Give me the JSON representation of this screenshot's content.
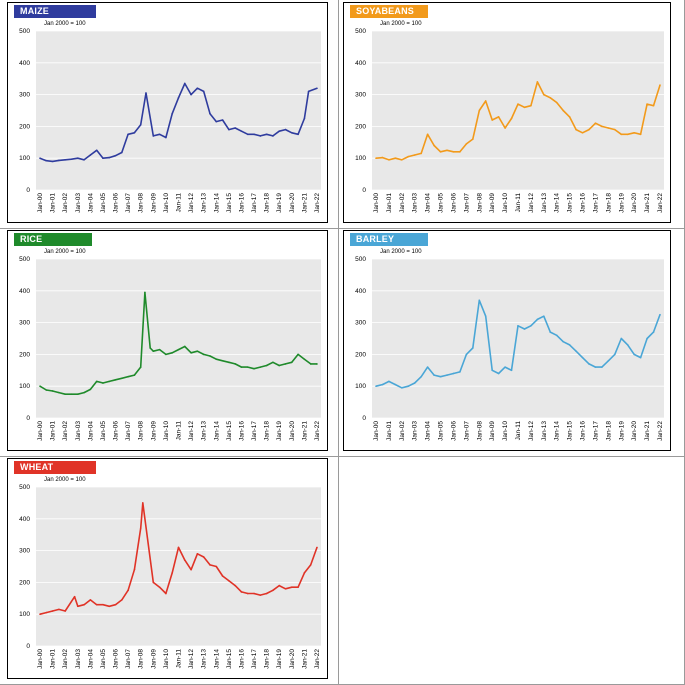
{
  "chart_data": [
    {
      "type": "line",
      "title": "MAIZE",
      "subtitle": "Jan 2000 = 100",
      "color": "#2f3c9e",
      "ylim": [
        0,
        500
      ],
      "yticks": [
        0,
        100,
        200,
        300,
        400,
        500
      ],
      "grid": true,
      "legend": "none",
      "x_range": [
        "Jan-00",
        "Jan-22"
      ],
      "xticks": [
        "Jan-00",
        "Jan-01",
        "Jan-02",
        "Jan-03",
        "Jan-04",
        "Jan-05",
        "Jan-06",
        "Jan-07",
        "Jan-08",
        "Jan-09",
        "Jan-10",
        "Jan-11",
        "Jan-12",
        "Jan-13",
        "Jan-14",
        "Jan-15",
        "Jan-16",
        "Jan-17",
        "Jan-18",
        "Jan-19",
        "Jan-20",
        "Jan-21",
        "Jan-22"
      ],
      "x": [
        "Jan-00",
        "Jul-00",
        "Jan-01",
        "Jul-01",
        "Jan-02",
        "Jul-02",
        "Jan-03",
        "Jul-03",
        "Jan-04",
        "Jul-04",
        "Jan-05",
        "Jul-05",
        "Jan-06",
        "Jul-06",
        "Jan-07",
        "Jul-07",
        "Jan-08",
        "Jun-08",
        "Jan-09",
        "Jul-09",
        "Jan-10",
        "Jul-10",
        "Jan-11",
        "Jul-11",
        "Jan-12",
        "Jul-12",
        "Jan-13",
        "Jul-13",
        "Jan-14",
        "Jul-14",
        "Jan-15",
        "Jul-15",
        "Jan-16",
        "Jul-16",
        "Jan-17",
        "Jul-17",
        "Jan-18",
        "Jul-18",
        "Jan-19",
        "Jul-19",
        "Jan-20",
        "Jul-20",
        "Jan-21",
        "May-21",
        "Jan-22"
      ],
      "y": [
        100,
        92,
        90,
        93,
        95,
        97,
        100,
        95,
        110,
        125,
        100,
        102,
        108,
        118,
        175,
        180,
        205,
        305,
        170,
        175,
        165,
        240,
        290,
        335,
        300,
        320,
        310,
        240,
        215,
        220,
        190,
        195,
        185,
        175,
        175,
        170,
        175,
        170,
        185,
        190,
        180,
        175,
        225,
        310,
        320
      ]
    },
    {
      "type": "line",
      "title": "SOYABEANS",
      "subtitle": "Jan 2000 = 100",
      "color": "#f29a1b",
      "ylim": [
        0,
        500
      ],
      "yticks": [
        0,
        100,
        200,
        300,
        400,
        500
      ],
      "grid": true,
      "legend": "none",
      "x_range": [
        "Jan-00",
        "Jan-22"
      ],
      "xticks": [
        "Jan-00",
        "Jan-01",
        "Jan-02",
        "Jan-03",
        "Jan-04",
        "Jan-05",
        "Jan-06",
        "Jan-07",
        "Jan-08",
        "Jan-09",
        "Jan-10",
        "Jan-11",
        "Jan-12",
        "Jan-13",
        "Jan-14",
        "Jan-15",
        "Jan-16",
        "Jan-17",
        "Jan-18",
        "Jan-19",
        "Jan-20",
        "Jan-21",
        "Jan-22"
      ],
      "x": [
        "Jan-00",
        "Jul-00",
        "Jan-01",
        "Jul-01",
        "Jan-02",
        "Jul-02",
        "Jan-03",
        "Jul-03",
        "Jan-04",
        "Jul-04",
        "Jan-05",
        "Jul-05",
        "Jan-06",
        "Jul-06",
        "Jan-07",
        "Jul-07",
        "Jan-08",
        "Jul-08",
        "Jan-09",
        "Jul-09",
        "Jan-10",
        "Jul-10",
        "Jan-11",
        "Jul-11",
        "Jan-12",
        "Jul-12",
        "Jan-13",
        "Jul-13",
        "Jan-14",
        "Jul-14",
        "Jan-15",
        "Jul-15",
        "Jan-16",
        "Jul-16",
        "Jan-17",
        "Jul-17",
        "Jan-18",
        "Jul-18",
        "Jan-19",
        "Jul-19",
        "Jan-20",
        "Jul-20",
        "Jan-21",
        "Jul-21",
        "Jan-22"
      ],
      "y": [
        100,
        102,
        95,
        100,
        95,
        105,
        110,
        115,
        175,
        140,
        120,
        125,
        120,
        120,
        145,
        160,
        250,
        280,
        220,
        230,
        195,
        225,
        270,
        260,
        265,
        340,
        300,
        290,
        275,
        250,
        230,
        190,
        180,
        190,
        210,
        200,
        195,
        190,
        175,
        175,
        180,
        175,
        270,
        265,
        330
      ]
    },
    {
      "type": "line",
      "title": "RICE",
      "subtitle": "Jan 2000 = 100",
      "color": "#1f8a2b",
      "ylim": [
        0,
        500
      ],
      "yticks": [
        0,
        100,
        200,
        300,
        400,
        500
      ],
      "grid": true,
      "legend": "none",
      "x_range": [
        "Jan-00",
        "Jan-22"
      ],
      "xticks": [
        "Jan-00",
        "Jan-01",
        "Jan-02",
        "Jan-03",
        "Jan-04",
        "Jan-05",
        "Jan-06",
        "Jan-07",
        "Jan-08",
        "Jan-09",
        "Jan-10",
        "Jan-11",
        "Jan-12",
        "Jan-13",
        "Jan-14",
        "Jan-15",
        "Jan-16",
        "Jan-17",
        "Jan-18",
        "Jan-19",
        "Jan-20",
        "Jan-21",
        "Jan-22"
      ],
      "x": [
        "Jan-00",
        "Jul-00",
        "Jan-01",
        "Jul-01",
        "Jan-02",
        "Jul-02",
        "Jan-03",
        "Jul-03",
        "Jan-04",
        "Jul-04",
        "Jan-05",
        "Jul-05",
        "Jan-06",
        "Jul-06",
        "Jan-07",
        "Jul-07",
        "Jan-08",
        "May-08",
        "Oct-08",
        "Jan-09",
        "Jul-09",
        "Jan-10",
        "Jul-10",
        "Jan-11",
        "Jul-11",
        "Jan-12",
        "Jul-12",
        "Jan-13",
        "Jul-13",
        "Jan-14",
        "Jul-14",
        "Jan-15",
        "Jul-15",
        "Jan-16",
        "Jul-16",
        "Jan-17",
        "Jul-17",
        "Jan-18",
        "Jul-18",
        "Jan-19",
        "Jul-19",
        "Jan-20",
        "Jul-20",
        "Jan-21",
        "Jul-21",
        "Jan-22"
      ],
      "y": [
        100,
        88,
        85,
        80,
        75,
        75,
        75,
        80,
        90,
        115,
        110,
        115,
        120,
        125,
        130,
        135,
        160,
        395,
        220,
        210,
        215,
        200,
        205,
        215,
        225,
        205,
        210,
        200,
        195,
        185,
        180,
        175,
        170,
        160,
        160,
        155,
        160,
        165,
        175,
        165,
        170,
        175,
        200,
        185,
        170,
        170
      ]
    },
    {
      "type": "line",
      "title": "BARLEY",
      "subtitle": "Jan 2000 = 100",
      "color": "#4aa6d6",
      "ylim": [
        0,
        500
      ],
      "yticks": [
        0,
        100,
        200,
        300,
        400,
        500
      ],
      "grid": true,
      "legend": "none",
      "x_range": [
        "Jan-00",
        "Jan-22"
      ],
      "xticks": [
        "Jan-00",
        "Jan-01",
        "Jan-02",
        "Jan-03",
        "Jan-04",
        "Jan-05",
        "Jan-06",
        "Jan-07",
        "Jan-08",
        "Jan-09",
        "Jan-10",
        "Jan-11",
        "Jan-12",
        "Jan-13",
        "Jan-14",
        "Jan-15",
        "Jan-16",
        "Jan-17",
        "Jan-18",
        "Jan-19",
        "Jan-20",
        "Jan-21",
        "Jan-22"
      ],
      "x": [
        "Jan-00",
        "Jul-00",
        "Jan-01",
        "Jul-01",
        "Jan-02",
        "Jul-02",
        "Jan-03",
        "Jul-03",
        "Jan-04",
        "Jul-04",
        "Jan-05",
        "Jul-05",
        "Jan-06",
        "Jul-06",
        "Jan-07",
        "Jul-07",
        "Jan-08",
        "Jul-08",
        "Jan-09",
        "Jul-09",
        "Jan-10",
        "Jul-10",
        "Jan-11",
        "Jul-11",
        "Jan-12",
        "Jul-12",
        "Jan-13",
        "Jul-13",
        "Jan-14",
        "Jul-14",
        "Jan-15",
        "Jul-15",
        "Jan-16",
        "Jul-16",
        "Jan-17",
        "Jul-17",
        "Jan-18",
        "Jul-18",
        "Jan-19",
        "Jul-19",
        "Jan-20",
        "Jul-20",
        "Jan-21",
        "Jul-21",
        "Jan-22"
      ],
      "y": [
        100,
        105,
        115,
        105,
        95,
        100,
        110,
        130,
        160,
        135,
        130,
        135,
        140,
        145,
        200,
        220,
        370,
        320,
        150,
        140,
        160,
        150,
        290,
        280,
        290,
        310,
        320,
        270,
        260,
        240,
        230,
        210,
        190,
        170,
        160,
        160,
        180,
        200,
        250,
        230,
        200,
        190,
        250,
        270,
        325
      ]
    },
    {
      "type": "line",
      "title": "WHEAT",
      "subtitle": "Jan 2000 = 100",
      "color": "#e03327",
      "ylim": [
        0,
        500
      ],
      "yticks": [
        0,
        100,
        200,
        300,
        400,
        500
      ],
      "grid": true,
      "legend": "none",
      "x_range": [
        "Jan-00",
        "Jan-22"
      ],
      "xticks": [
        "Jan-00",
        "Jan-01",
        "Jan-02",
        "Jan-03",
        "Jan-04",
        "Jan-05",
        "Jan-06",
        "Jan-07",
        "Jan-08",
        "Jan-09",
        "Jan-10",
        "Jan-11",
        "Jan-12",
        "Jan-13",
        "Jan-14",
        "Jan-15",
        "Jan-16",
        "Jan-17",
        "Jan-18",
        "Jan-19",
        "Jan-20",
        "Jan-21",
        "Jan-22"
      ],
      "x": [
        "Jan-00",
        "Jul-00",
        "Jan-01",
        "Jul-01",
        "Jan-02",
        "Oct-02",
        "Jan-03",
        "Jul-03",
        "Jan-04",
        "Jul-04",
        "Jan-05",
        "Jul-05",
        "Jan-06",
        "Jul-06",
        "Jan-07",
        "Jul-07",
        "Jan-08",
        "Mar-08",
        "Jan-09",
        "Jul-09",
        "Jan-10",
        "Jul-10",
        "Jan-11",
        "Jul-11",
        "Jan-12",
        "Jul-12",
        "Jan-13",
        "Jul-13",
        "Jan-14",
        "Jul-14",
        "Jan-15",
        "Jul-15",
        "Jan-16",
        "Jul-16",
        "Jan-17",
        "Jul-17",
        "Jan-18",
        "Jul-18",
        "Jan-19",
        "Jul-19",
        "Jan-20",
        "Jul-20",
        "Jan-21",
        "Jul-21",
        "Jan-22"
      ],
      "y": [
        100,
        105,
        110,
        115,
        110,
        155,
        125,
        130,
        145,
        130,
        130,
        125,
        130,
        145,
        175,
        240,
        370,
        450,
        200,
        185,
        165,
        230,
        310,
        270,
        240,
        290,
        280,
        255,
        250,
        220,
        205,
        190,
        170,
        165,
        165,
        160,
        165,
        175,
        190,
        180,
        185,
        185,
        230,
        255,
        310
      ]
    }
  ]
}
